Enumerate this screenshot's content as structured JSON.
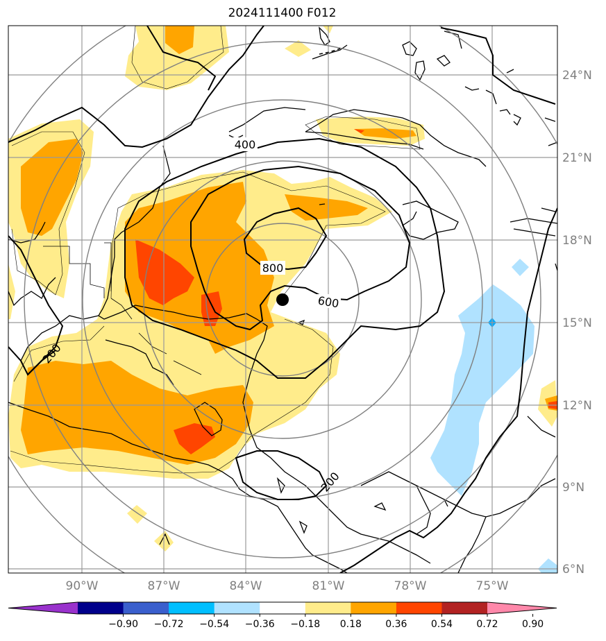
{
  "title": "2024111400 F012",
  "latitude_labels": [
    "24°N",
    "21°N",
    "18°N",
    "15°N",
    "12°N",
    "9°N",
    "6°N"
  ],
  "longitude_labels": [
    "90°W",
    "87°W",
    "84°W",
    "81°W",
    "78°W",
    "75°W"
  ],
  "contour_labels": [
    "400",
    "800",
    "600",
    "200",
    "200",
    "200"
  ],
  "colorbar": {
    "tick_labels": [
      "−0.90",
      "−0.72",
      "−0.54",
      "−0.36",
      "−0.18",
      "0.18",
      "0.36",
      "0.54",
      "0.72",
      "0.90"
    ],
    "colors": [
      "#9932cc",
      "#00008b",
      "#3a5fcd",
      "#00bfff",
      "#b0e2ff",
      "#ffffff",
      "#ffec8b",
      "#ffa500",
      "#ff4500",
      "#b22222",
      "#ff88aa"
    ]
  },
  "colors": {
    "light_yellow": "#ffec8b",
    "orange": "#ffa500",
    "red_orange": "#ff4500",
    "light_blue": "#b0e2ff",
    "grid": "#999999",
    "range_ring": "#808080"
  },
  "storm_marker": "black-dot"
}
